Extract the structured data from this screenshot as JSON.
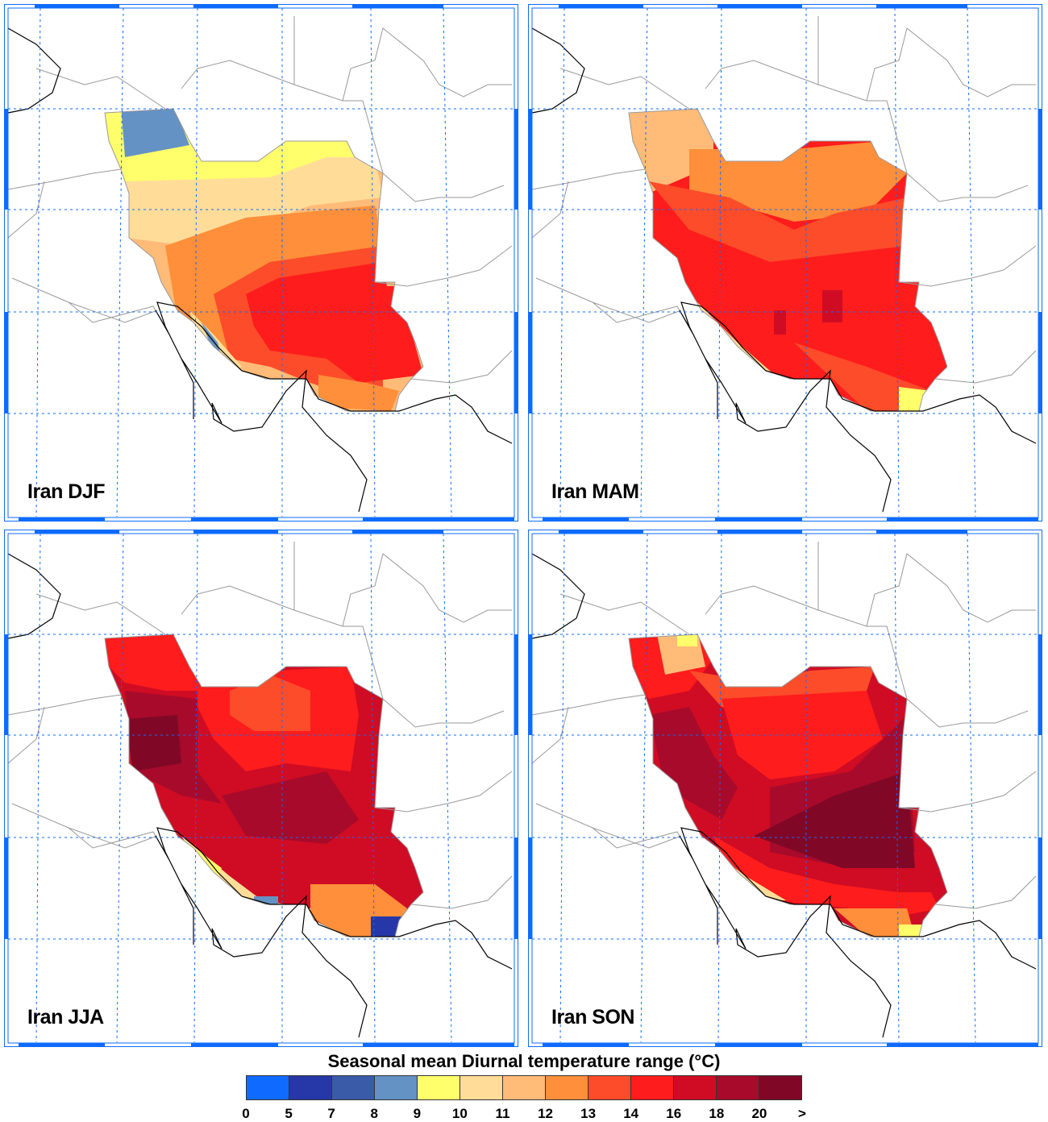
{
  "panels": [
    {
      "id": "djf",
      "title": "Iran DJF"
    },
    {
      "id": "mam",
      "title": "Iran MAM"
    },
    {
      "id": "jja",
      "title": "Iran JJA"
    },
    {
      "id": "son",
      "title": "Iran SON"
    }
  ],
  "colorbar": {
    "title": "Seasonal mean Diurnal temperature range (°C)",
    "labels": [
      "0",
      "5",
      "7",
      "8",
      "9",
      "10",
      "11",
      "12",
      "13",
      "14",
      "16",
      "18",
      "20",
      ">"
    ],
    "colors": [
      "#0f6bff",
      "#2638a8",
      "#3a5ba8",
      "#6492c4",
      "#ffff6c",
      "#ffdd99",
      "#ffbb77",
      "#ff8f3a",
      "#fd4c2a",
      "#ff1c1c",
      "#cf0c24",
      "#a80a2b",
      "#800826"
    ]
  },
  "frame_color": "#0f6bff"
}
